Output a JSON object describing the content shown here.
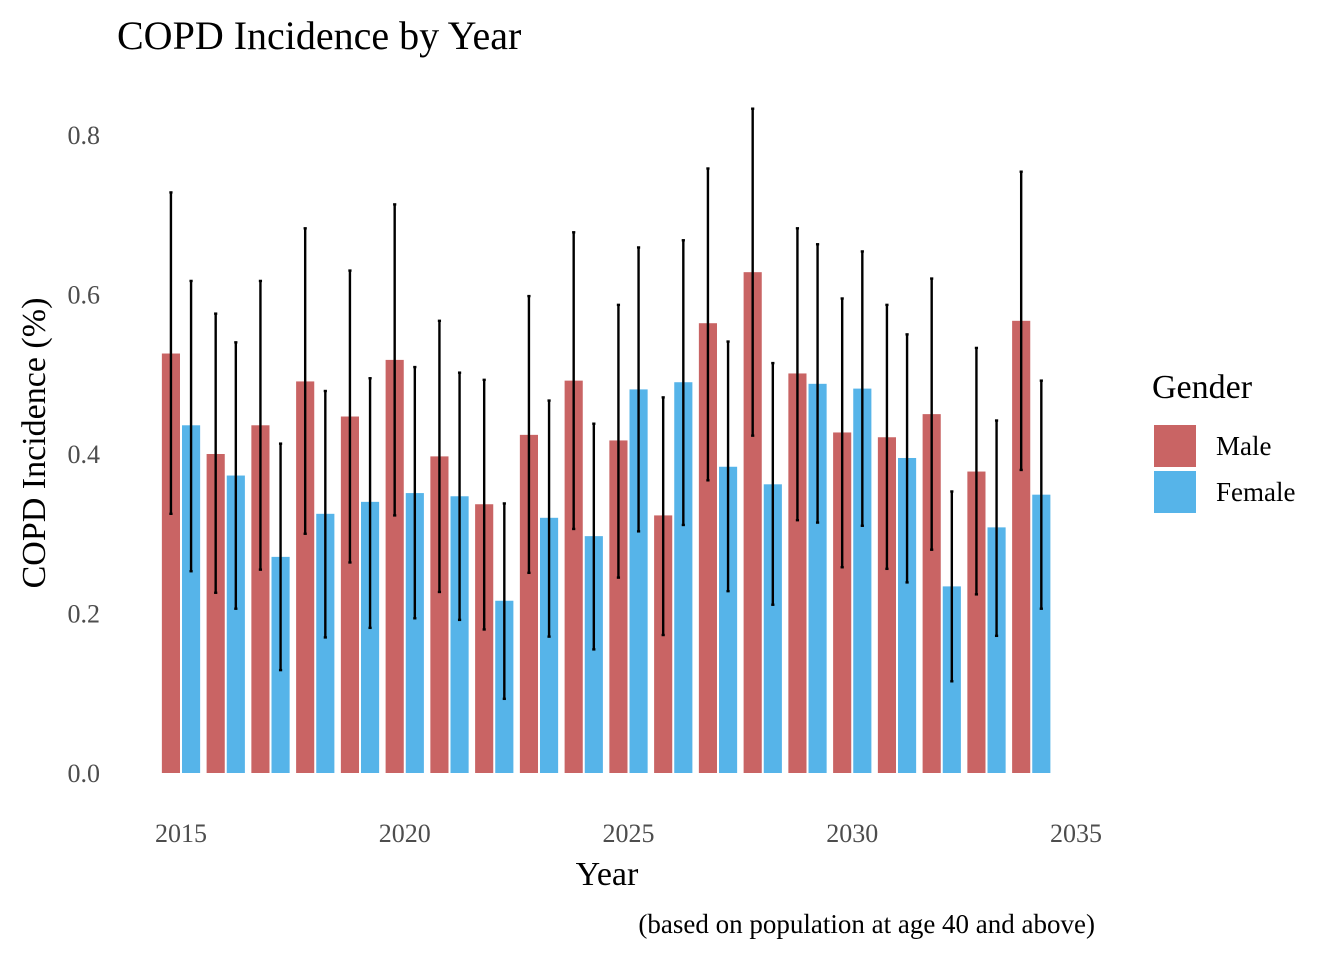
{
  "chart_data": {
    "type": "bar",
    "title": "COPD Incidence by Year",
    "xlabel": "Year",
    "ylabel": "COPD Incidence (%)",
    "caption": "(based on population at age 40 and above)",
    "x": [
      2015,
      2016,
      2017,
      2018,
      2019,
      2020,
      2021,
      2022,
      2023,
      2024,
      2025,
      2026,
      2027,
      2028,
      2029,
      2030,
      2031,
      2032,
      2033,
      2034
    ],
    "xlim": [
      2014.4,
      2035
    ],
    "xticks": [
      "2015",
      "2020",
      "2025",
      "2030",
      "2035"
    ],
    "ylim": [
      0,
      0.85
    ],
    "yticks": [
      "0.0",
      "0.2",
      "0.4",
      "0.6",
      "0.8"
    ],
    "grid": false,
    "legend": {
      "title": "Gender",
      "position": "right"
    },
    "series": [
      {
        "name": "Male",
        "color": "#c96464",
        "values": [
          0.526,
          0.4,
          0.436,
          0.491,
          0.447,
          0.518,
          0.397,
          0.337,
          0.424,
          0.492,
          0.417,
          0.323,
          0.564,
          0.628,
          0.501,
          0.427,
          0.421,
          0.45,
          0.378,
          0.567
        ],
        "error_low": [
          0.325,
          0.226,
          0.255,
          0.3,
          0.264,
          0.323,
          0.227,
          0.18,
          0.251,
          0.306,
          0.245,
          0.173,
          0.367,
          0.423,
          0.317,
          0.258,
          0.256,
          0.28,
          0.224,
          0.38
        ],
        "error_high": [
          0.728,
          0.576,
          0.617,
          0.683,
          0.63,
          0.713,
          0.567,
          0.493,
          0.598,
          0.678,
          0.587,
          0.471,
          0.758,
          0.833,
          0.683,
          0.595,
          0.587,
          0.62,
          0.533,
          0.754
        ]
      },
      {
        "name": "Female",
        "color": "#56b4e9",
        "values": [
          0.436,
          0.373,
          0.271,
          0.325,
          0.34,
          0.351,
          0.347,
          0.216,
          0.32,
          0.297,
          0.481,
          0.49,
          0.384,
          0.362,
          0.488,
          0.482,
          0.395,
          0.234,
          0.308,
          0.349
        ],
        "error_low": [
          0.253,
          0.206,
          0.129,
          0.17,
          0.182,
          0.194,
          0.192,
          0.093,
          0.171,
          0.155,
          0.303,
          0.311,
          0.228,
          0.211,
          0.314,
          0.31,
          0.239,
          0.115,
          0.172,
          0.206
        ],
        "error_high": [
          0.617,
          0.54,
          0.413,
          0.479,
          0.495,
          0.509,
          0.502,
          0.338,
          0.467,
          0.438,
          0.659,
          0.668,
          0.541,
          0.514,
          0.663,
          0.654,
          0.55,
          0.353,
          0.442,
          0.492
        ]
      }
    ]
  }
}
